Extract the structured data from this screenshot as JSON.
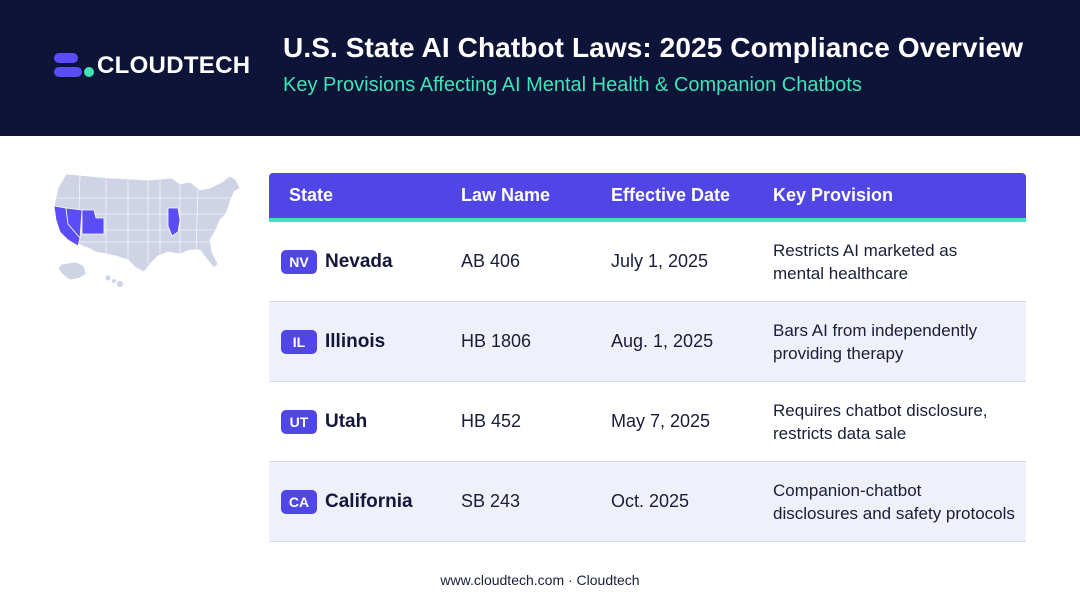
{
  "header": {
    "logo_text": "CLOUDTECH",
    "title": "U.S. State AI Chatbot Laws: 2025 Compliance Overview",
    "subtitle": "Key Provisions Affecting AI Mental Health & Companion Chatbots"
  },
  "map": {
    "icon": "us-map-icon",
    "highlighted_states": [
      "Nevada",
      "California",
      "Utah",
      "Illinois"
    ],
    "highlight_color": "#5b4df5",
    "base_color": "#cfd3e6"
  },
  "table": {
    "headers": [
      "State",
      "Law Name",
      "Effective Date",
      "Key Provision"
    ],
    "rows": [
      {
        "code": "NV",
        "state": "Nevada",
        "law": "AB 406",
        "date": "July 1, 2025",
        "provision_line1": "Restricts AI marketed as",
        "provision_line2": "mental healthcare"
      },
      {
        "code": "IL",
        "state": "Illinois",
        "law": "HB 1806",
        "date": "Aug. 1, 2025",
        "provision_line1": "Bars AI from independently",
        "provision_line2": "providing therapy"
      },
      {
        "code": "UT",
        "state": "Utah",
        "law": "HB 452",
        "date": "May 7, 2025",
        "provision_line1": "Requires chatbot disclosure,",
        "provision_line2": "restricts data sale"
      },
      {
        "code": "CA",
        "state": "California",
        "law": "SB 243",
        "date": "Oct. 2025",
        "provision_line1": "Companion-chatbot",
        "provision_line2": "disclosures and safety protocols"
      }
    ]
  },
  "footer": {
    "text": "www.cloudtech.com · Cloudtech"
  },
  "colors": {
    "header_bg": "#0e1338",
    "accent": "#4f46e5",
    "teal": "#3fe3b5"
  }
}
